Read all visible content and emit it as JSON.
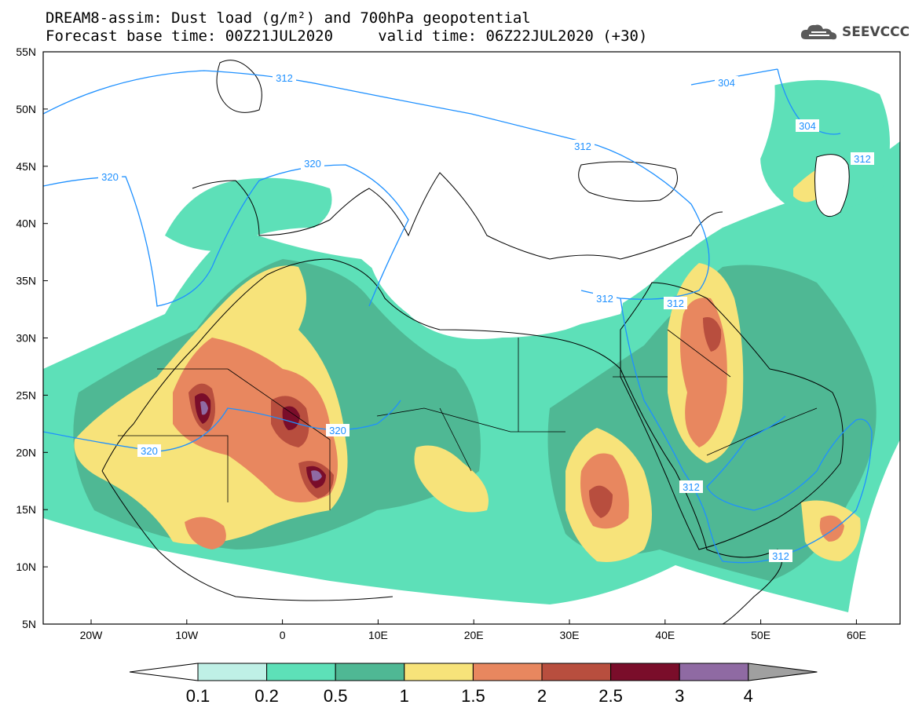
{
  "header": {
    "title_line1": "DREAM8-assim: Dust load (g/m²) and 700hPa geopotential",
    "title_line2": "Forecast base time: 00Z21JUL2020     valid time: 06Z22JUL2020 (+30)",
    "logo_text": "SEEVCCC",
    "logo_icon": "cloud-icon"
  },
  "map": {
    "lat_labels": [
      "55N",
      "50N",
      "45N",
      "40N",
      "35N",
      "30N",
      "25N",
      "20N",
      "15N",
      "10N",
      "5N"
    ],
    "lon_labels": [
      "20W",
      "10W",
      "0",
      "10E",
      "20E",
      "30E",
      "40E",
      "50E",
      "60E"
    ],
    "contour_labels": [
      "312",
      "304",
      "304",
      "312",
      "320",
      "320",
      "312",
      "312",
      "312",
      "312",
      "320",
      "320",
      "312"
    ],
    "ocean_color": "#ffffff",
    "land_border_color": "#000000",
    "contour_color": "#1e90ff"
  },
  "legend": {
    "tick_labels": [
      "0.1",
      "0.2",
      "0.5",
      "1",
      "1.5",
      "2",
      "2.5",
      "3",
      "4"
    ],
    "colors": [
      "#bff0e6",
      "#5de0b8",
      "#4fb894",
      "#f7e37a",
      "#e8875f",
      "#b84e3e",
      "#7a0d2a",
      "#8f6aa3",
      "#a0a0a0"
    ],
    "under_color": "#ffffff",
    "over_color": "#a0a0a0"
  }
}
